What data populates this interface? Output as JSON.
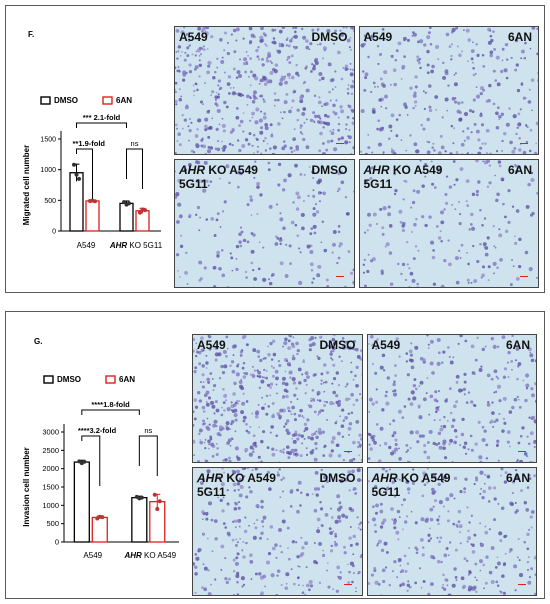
{
  "panels": [
    {
      "letter": "F.",
      "legend": {
        "dmso": "DMSO",
        "six_an": "6AN"
      },
      "significance": {
        "top": "*** 2.1-fold",
        "left": "**1.9-fold",
        "right": "ns"
      },
      "chart_data": {
        "type": "bar",
        "title": "",
        "xlabel": "",
        "ylabel": "Migrated cell number",
        "ylim": [
          0,
          1500
        ],
        "yticks": [
          "0",
          "500",
          "1000",
          "1500"
        ],
        "categories": [
          "A549",
          "AHR KO 5G11"
        ],
        "category_display": [
          {
            "prefix": "",
            "italic": "",
            "suffix": "A549"
          },
          {
            "prefix": "",
            "italic": "AHR",
            "suffix": " KO 5G11"
          }
        ],
        "series": [
          {
            "name": "DMSO",
            "color": "#000000",
            "values": [
              950,
              450
            ],
            "errors": [
              140,
              40
            ],
            "points": [
              [
                1080,
                920,
                850
              ],
              [
                470,
                430,
                450
              ]
            ]
          },
          {
            "name": "6AN",
            "color": "#e02020",
            "values": [
              490,
              330
            ],
            "errors": [
              10,
              40
            ],
            "points": [
              [
                490,
                495,
                485
              ],
              [
                300,
                350,
                340
              ]
            ]
          }
        ]
      },
      "images": [
        {
          "line1_italic": "",
          "line1": "A549",
          "line2": "",
          "treatment": "DMSO",
          "density": "high"
        },
        {
          "line1_italic": "",
          "line1": "A549",
          "line2": "",
          "treatment": "6AN",
          "density": "mid"
        },
        {
          "line1_italic": "AHR",
          "line1": " KO A549",
          "line2": "5G11",
          "treatment": "DMSO",
          "density": "low"
        },
        {
          "line1_italic": "AHR",
          "line1": " KO A549",
          "line2": "5G11",
          "treatment": "6AN",
          "density": "low"
        }
      ]
    },
    {
      "letter": "G.",
      "legend": {
        "dmso": "DMSO",
        "six_an": "6AN"
      },
      "significance": {
        "top": "****1.8-fold",
        "left": "****3.2-fold",
        "right": "ns"
      },
      "chart_data": {
        "type": "bar",
        "title": "",
        "xlabel": "",
        "ylabel": "Invasion cell number",
        "ylim": [
          0,
          3000
        ],
        "yticks": [
          "0",
          "500",
          "1000",
          "1500",
          "2000",
          "2500",
          "3000"
        ],
        "categories": [
          "A549",
          "AHR KO A549"
        ],
        "category_display": [
          {
            "prefix": "",
            "italic": "",
            "suffix": "A549"
          },
          {
            "prefix": "",
            "italic": "AHR",
            "suffix": " KO A549"
          }
        ],
        "series": [
          {
            "name": "DMSO",
            "color": "#000000",
            "values": [
              2180,
              1210
            ],
            "errors": [
              50,
              40
            ],
            "points": [
              [
                2200,
                2150,
                2190
              ],
              [
                1230,
                1190,
                1210
              ]
            ]
          },
          {
            "name": "6AN",
            "color": "#e02020",
            "values": [
              670,
              1100
            ],
            "errors": [
              40,
              200
            ],
            "points": [
              [
                640,
                690,
                680
              ],
              [
                1290,
                900,
                1110
              ]
            ]
          }
        ]
      },
      "images": [
        {
          "line1_italic": "",
          "line1": "A549",
          "line2": "",
          "treatment": "DMSO",
          "density": "high"
        },
        {
          "line1_italic": "",
          "line1": "A549",
          "line2": "",
          "treatment": "6AN",
          "density": "mid"
        },
        {
          "line1_italic": "AHR",
          "line1": " KO A549",
          "line2": "5G11",
          "treatment": "DMSO",
          "density": "mid"
        },
        {
          "line1_italic": "AHR",
          "line1": " KO A549",
          "line2": "5G11",
          "treatment": "6AN",
          "density": "mid"
        }
      ]
    }
  ]
}
